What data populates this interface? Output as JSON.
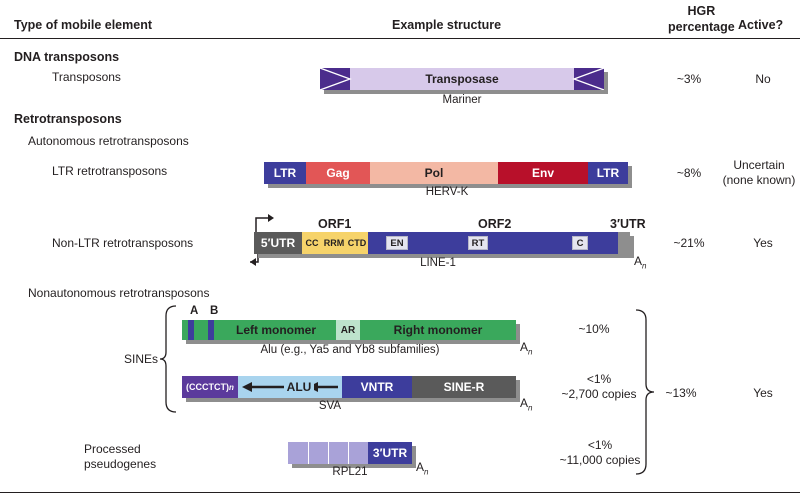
{
  "headers": {
    "type": "Type of mobile element",
    "structure": "Example structure",
    "hgr": "HGR\npercentage",
    "active": "Active?"
  },
  "dna": {
    "section": "DNA transposons",
    "label": "Transposons",
    "segment": "Transposase",
    "caption": "Mariner",
    "pct": "~3%",
    "active": "No"
  },
  "retro": {
    "section": "Retrotransposons",
    "autonomous": "Autonomous retrotransposons",
    "nonautonomous": "Nonautonomous retrotransposons"
  },
  "ltr": {
    "label": "LTR retrotransposons",
    "segments": [
      "LTR",
      "Gag",
      "Pol",
      "Env",
      "LTR"
    ],
    "caption": "HERV-K",
    "pct": "~8%",
    "active": "Uncertain\n(none known)"
  },
  "line": {
    "label": "Non-LTR retrotransposons",
    "utr5": "5′UTR",
    "orf1": "ORF1",
    "orf2": "ORF2",
    "utr3": "3′UTR",
    "orf1_domains": [
      "CC",
      "RRM",
      "CTD"
    ],
    "orf2_domains": [
      "EN",
      "RT",
      "C"
    ],
    "caption": "LINE-1",
    "polyA": "A",
    "polyA_sub": "n",
    "pct": "~21%",
    "active": "Yes"
  },
  "sines_group": {
    "label": "SINEs",
    "group_pct": "~13%",
    "active": "Yes"
  },
  "alu": {
    "boxA": "A",
    "boxB": "B",
    "left": "Left monomer",
    "ar": "AR",
    "right": "Right monomer",
    "caption": "Alu (e.g., Ya5 and Yb8 subfamilies)",
    "polyA": "A",
    "polyA_sub": "n",
    "pct": "~10%"
  },
  "sva": {
    "hex": "(CCCTCT)",
    "hex_sub": "n",
    "alu": "ALU",
    "vntr": "VNTR",
    "siner": "SINE-R",
    "caption": "SVA",
    "polyA": "A",
    "polyA_sub": "n",
    "pct": "<1%\n~2,700 copies"
  },
  "pseudo": {
    "label": "Processed\npseudogenes",
    "utr3": "3′UTR",
    "caption": "RPL21",
    "polyA": "A",
    "polyA_sub": "n",
    "pct": "<1%\n~11,000 copies"
  },
  "colors": {
    "purple": "#3d3d9c",
    "lavender": "#d7c9ea",
    "red": "#e25656",
    "peach": "#f3b8a4",
    "darkred": "#b8102a",
    "green": "#3aa85c",
    "lightblue": "#a9d4ee",
    "gray": "#5a5a5a",
    "yellow": "#f6d36a"
  }
}
